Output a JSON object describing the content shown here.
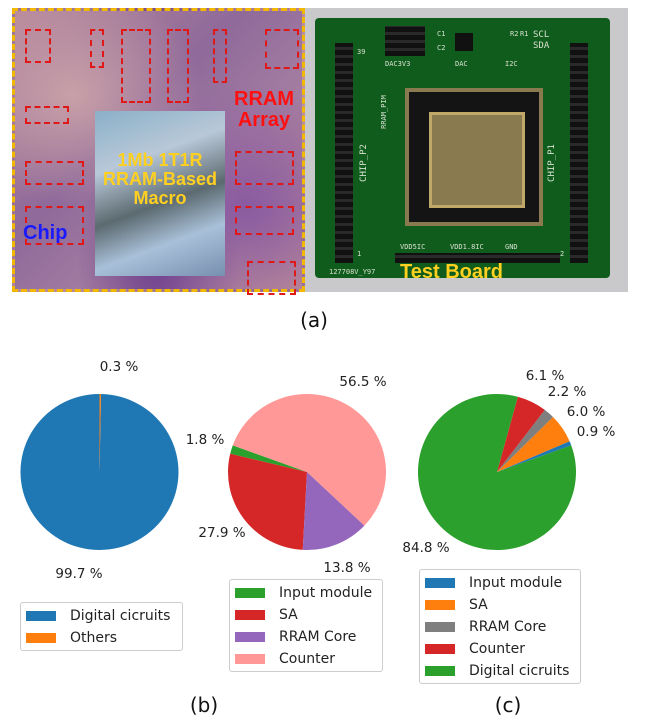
{
  "figure_a": {
    "caption": "(a)",
    "chip_label": "Chip",
    "array_label": [
      "RRAM",
      "Array"
    ],
    "macro_label": [
      "1Mb 1T1R",
      "RRAM-Based",
      "Macro"
    ],
    "board_label": "Test Board",
    "silkscreen": [
      "DAC3V3",
      "DAC",
      "I2C",
      "SCL",
      "SDA",
      "CHIP_P2",
      "CHIP_P1",
      "RRAM_PIM",
      "VDD5IC",
      "VDD1.8IC",
      "GND",
      "127708V_Y97",
      "C1",
      "C2",
      "R2",
      "R1",
      "39",
      "1",
      "2"
    ]
  },
  "chart_data": [
    {
      "type": "pie",
      "caption": "(b)",
      "startangle": 90,
      "labels": [
        "Digital cicruits",
        "Others"
      ],
      "values": [
        99.7,
        0.3
      ],
      "colors": [
        "#1f77b4",
        "#ff7f0e"
      ],
      "value_labels": [
        "99.7 %",
        "0.3 %"
      ]
    },
    {
      "type": "pie",
      "caption": "",
      "startangle": 160,
      "labels": [
        "Input module",
        "SA",
        "RRAM Core",
        "Counter"
      ],
      "values": [
        1.8,
        27.9,
        13.8,
        56.5
      ],
      "colors": [
        "#2ca02c",
        "#d62728",
        "#9467bd",
        "#ff9896"
      ],
      "value_labels": [
        "1.8 %",
        "27.9 %",
        "13.8 %",
        "56.5 %"
      ]
    },
    {
      "type": "pie",
      "caption": "(c)",
      "startangle": 20,
      "labels": [
        "Input module",
        "SA",
        "RRAM Core",
        "Counter",
        "Digital cicruits"
      ],
      "values": [
        0.9,
        6.0,
        2.2,
        6.1,
        84.8
      ],
      "colors": [
        "#1f77b4",
        "#ff7f0e",
        "#7f7f7f",
        "#d62728",
        "#2ca02c"
      ],
      "value_labels": [
        "0.9 %",
        "6.0 %",
        "2.2 %",
        "6.1 %",
        "84.8 %"
      ]
    }
  ]
}
